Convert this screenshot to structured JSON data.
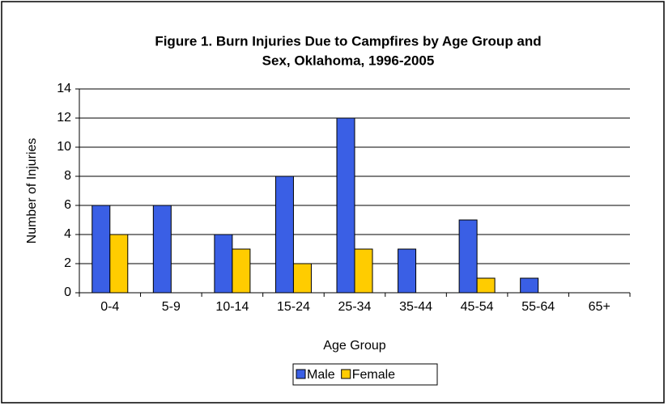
{
  "chart_data": {
    "type": "bar",
    "title": [
      "Figure  1.  Burn Injuries Due to Campfires by Age Group and",
      "Sex, Oklahoma, 1996-2005"
    ],
    "x_label": "Age Group",
    "y_label": "Number of Injuries",
    "categories": [
      "0-4",
      "5-9",
      "10-14",
      "15-24",
      "25-34",
      "35-44",
      "45-54",
      "55-64",
      "65+"
    ],
    "series": [
      {
        "name": "Male",
        "color": "#3a5fe5",
        "values": [
          6,
          6,
          4,
          8,
          12,
          3,
          5,
          1,
          0
        ]
      },
      {
        "name": "Female",
        "color": "#ffcc00",
        "values": [
          4,
          0,
          3,
          2,
          3,
          0,
          1,
          0,
          0
        ]
      }
    ],
    "ylim": [
      0,
      14
    ],
    "yticks": [
      0,
      2,
      4,
      6,
      8,
      10,
      12,
      14
    ],
    "grid": true,
    "legend": "bottom"
  }
}
